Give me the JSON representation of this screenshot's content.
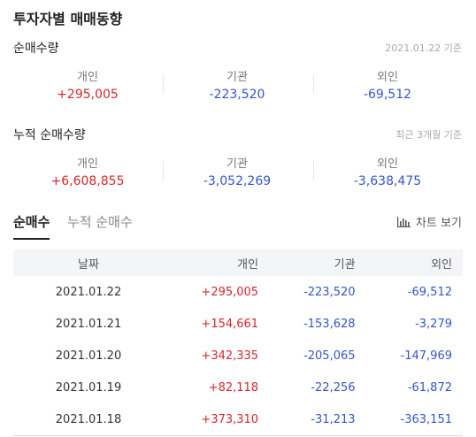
{
  "title": "투자자별 매매동향",
  "net_volume": {
    "title": "순매수량",
    "note": "2021.01.22 기준",
    "individual": {
      "label": "개인",
      "value": "+295,005"
    },
    "institution": {
      "label": "기관",
      "value": "-223,520"
    },
    "foreign": {
      "label": "외인",
      "value": "-69,512"
    }
  },
  "cumulative": {
    "title": "누적 순매수량",
    "note": "최근 3개월 기준",
    "individual": {
      "label": "개인",
      "value": "+6,608,855"
    },
    "institution": {
      "label": "기관",
      "value": "-3,052,269"
    },
    "foreign": {
      "label": "외인",
      "value": "-3,638,475"
    }
  },
  "tabs": {
    "active": "순매수",
    "inactive": "누적 순매수"
  },
  "chart_button": "차트 보기",
  "table": {
    "headers": {
      "date": "날짜",
      "individual": "개인",
      "institution": "기관",
      "foreign": "외인"
    },
    "rows": [
      {
        "date": "2021.01.22",
        "individual": "+295,005",
        "institution": "-223,520",
        "foreign": "-69,512"
      },
      {
        "date": "2021.01.21",
        "individual": "+154,661",
        "institution": "-153,628",
        "foreign": "-3,279"
      },
      {
        "date": "2021.01.20",
        "individual": "+342,335",
        "institution": "-205,065",
        "foreign": "-147,969"
      },
      {
        "date": "2021.01.19",
        "individual": "+82,118",
        "institution": "-22,256",
        "foreign": "-61,872"
      },
      {
        "date": "2021.01.18",
        "individual": "+373,310",
        "institution": "-31,213",
        "foreign": "-363,151"
      }
    ]
  },
  "colors": {
    "positive": "#d6262c",
    "negative": "#3455c9"
  },
  "icons": {
    "chart": "bar-chart-icon"
  }
}
